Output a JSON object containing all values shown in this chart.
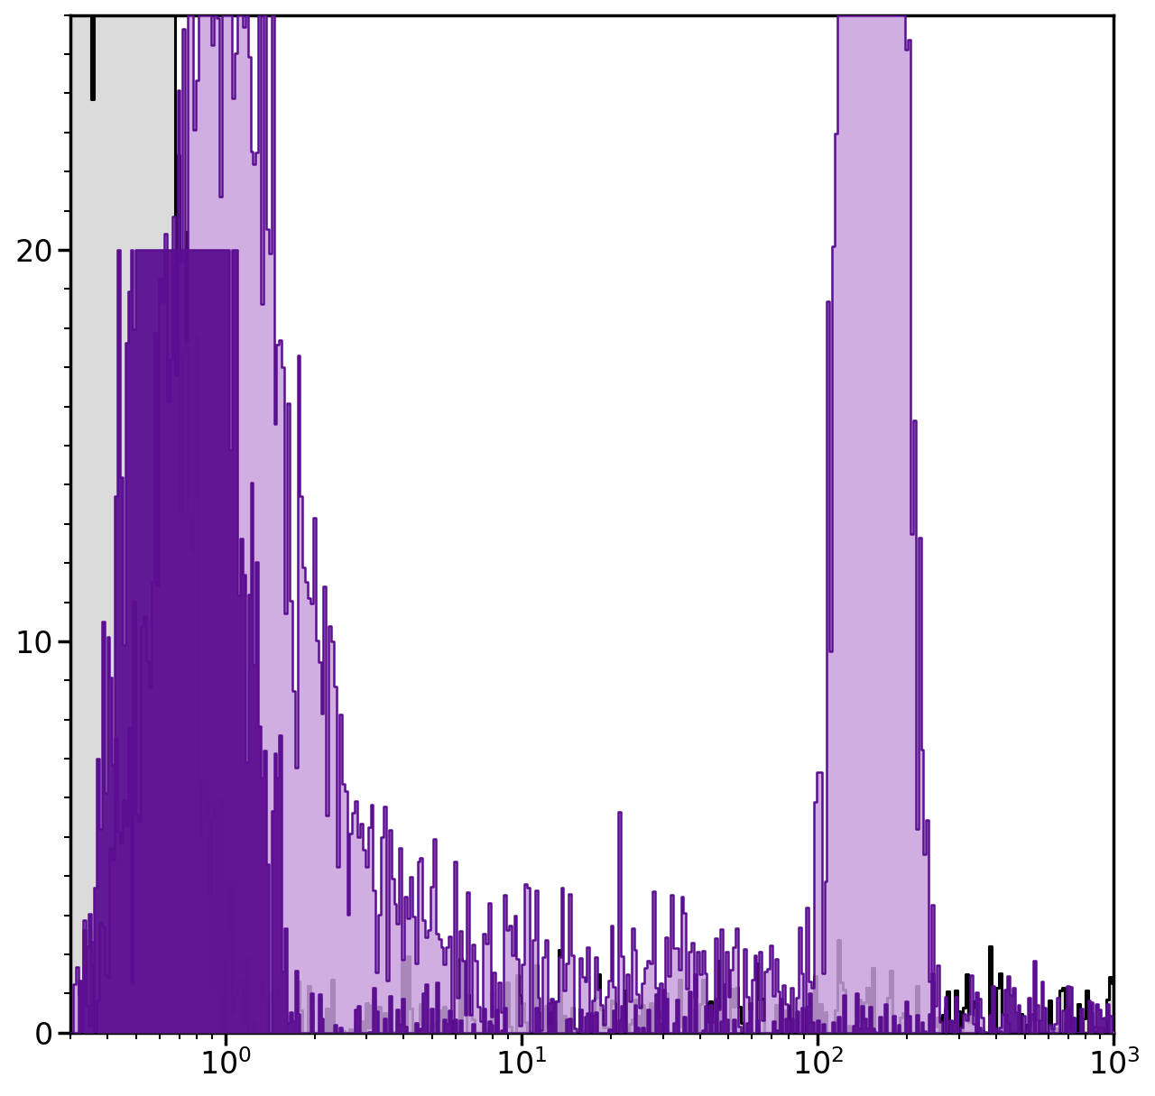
{
  "xlim": [
    0.3,
    1000
  ],
  "ylim": [
    0,
    26
  ],
  "yticks": [
    0,
    10,
    20
  ],
  "bg_color": "#ffffff",
  "gray_fill": "#d0d0d0",
  "gray_edge": "#000000",
  "dark_purple_fill": "#5b0e91",
  "dark_purple_edge": "#5b0e91",
  "light_purple_fill": "#c9a0dc",
  "light_purple_edge": "#5b0e91",
  "tick_fontsize": 24,
  "spine_linewidth": 2.5,
  "frame": true,
  "n_bins": 400,
  "seeds": [
    101,
    202,
    303
  ]
}
